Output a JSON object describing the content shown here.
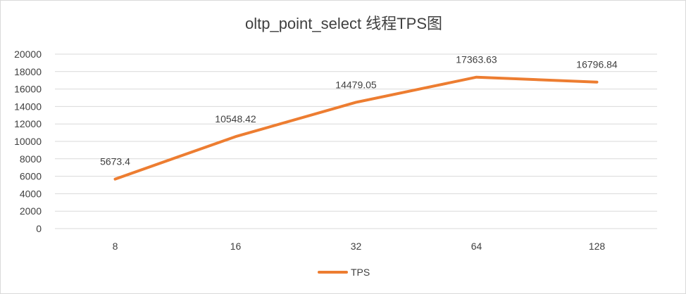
{
  "chart_data": {
    "type": "line",
    "title": "oltp_point_select 线程TPS图",
    "categories": [
      "8",
      "16",
      "32",
      "64",
      "128"
    ],
    "series": [
      {
        "name": "TPS",
        "values": [
          5673.4,
          10548.42,
          14479.05,
          17363.63,
          16796.84
        ],
        "labels": [
          "5673.4",
          "10548.42",
          "14479.05",
          "17363.63",
          "16796.84"
        ],
        "color": "#ED7D31"
      }
    ],
    "xlabel": "",
    "ylabel": "",
    "ylim": [
      0,
      20000
    ],
    "yticks": [
      "0",
      "2000",
      "4000",
      "6000",
      "8000",
      "10000",
      "12000",
      "14000",
      "16000",
      "18000",
      "20000"
    ],
    "grid": true,
    "legend_position": "bottom"
  }
}
